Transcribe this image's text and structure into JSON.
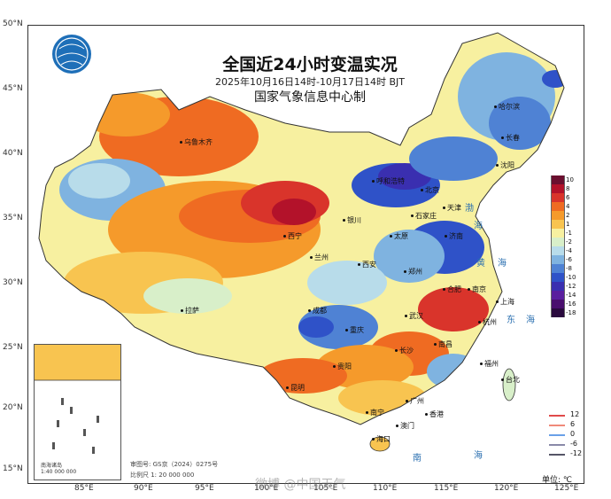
{
  "title": "全国近24小时变温实况",
  "subtitle": "2025年10月16日14时-10月17日14时 BJT",
  "issuer": "国家气象信息中心制",
  "lat_ticks": [
    "50°N",
    "45°N",
    "40°N",
    "35°N",
    "30°N",
    "25°N",
    "20°N",
    "15°N"
  ],
  "lon_ticks": [
    "85°E",
    "90°E",
    "95°E",
    "100°E",
    "105°E",
    "110°E",
    "115°E",
    "120°E",
    "125°E"
  ],
  "legend": {
    "unit": "单位: ℃",
    "bins": [
      {
        "label": "10",
        "color": "#6b0f2f"
      },
      {
        "label": "8",
        "color": "#b3122a"
      },
      {
        "label": "6",
        "color": "#d9342b"
      },
      {
        "label": "4",
        "color": "#ef6b22"
      },
      {
        "label": "2",
        "color": "#f59a2b"
      },
      {
        "label": "1",
        "color": "#f8c450"
      },
      {
        "label": "-1",
        "color": "#f7f0a0"
      },
      {
        "label": "-2",
        "color": "#d8efc9"
      },
      {
        "label": "-4",
        "color": "#b8dcea"
      },
      {
        "label": "-6",
        "color": "#7fb3e0"
      },
      {
        "label": "-8",
        "color": "#4f82d4"
      },
      {
        "label": "-10",
        "color": "#2f52c8"
      },
      {
        "label": "-12",
        "color": "#3a2fb0"
      },
      {
        "label": "-14",
        "color": "#5a1f9e"
      },
      {
        "label": "-16",
        "color": "#4a0f6e"
      },
      {
        "label": "-18",
        "color": "#2a0a3e"
      }
    ],
    "lines": [
      {
        "label": "12",
        "color": "#e04a4a"
      },
      {
        "label": "6",
        "color": "#f08a7a"
      },
      {
        "label": "0",
        "color": "#6aa0e8"
      },
      {
        "label": "-6",
        "color": "#8a8aa8"
      },
      {
        "label": "-12",
        "color": "#555566"
      }
    ]
  },
  "cities": [
    {
      "name": "乌鲁木齐",
      "id": "urumqi"
    },
    {
      "name": "哈尔滨",
      "id": "harbin"
    },
    {
      "name": "长春",
      "id": "changchun"
    },
    {
      "name": "沈阳",
      "id": "shenyang"
    },
    {
      "name": "呼和浩特",
      "id": "hohhot"
    },
    {
      "name": "北京",
      "id": "beijing"
    },
    {
      "name": "天津",
      "id": "tianjin"
    },
    {
      "name": "石家庄",
      "id": "shijiazhuang"
    },
    {
      "name": "太原",
      "id": "taiyuan"
    },
    {
      "name": "济南",
      "id": "jinan"
    },
    {
      "name": "银川",
      "id": "yinchuan"
    },
    {
      "name": "西宁",
      "id": "xining"
    },
    {
      "name": "兰州",
      "id": "lanzhou"
    },
    {
      "name": "郑州",
      "id": "zhengzhou"
    },
    {
      "name": "西安",
      "id": "xian"
    },
    {
      "name": "合肥",
      "id": "hefei"
    },
    {
      "name": "南京",
      "id": "nanjing"
    },
    {
      "name": "上海",
      "id": "shanghai"
    },
    {
      "name": "杭州",
      "id": "hangzhou"
    },
    {
      "name": "武汉",
      "id": "wuhan"
    },
    {
      "name": "成都",
      "id": "chengdu"
    },
    {
      "name": "重庆",
      "id": "chongqing"
    },
    {
      "name": "拉萨",
      "id": "lhasa"
    },
    {
      "name": "长沙",
      "id": "changsha"
    },
    {
      "name": "南昌",
      "id": "nanchang"
    },
    {
      "name": "福州",
      "id": "fuzhou"
    },
    {
      "name": "贵阳",
      "id": "guiyang"
    },
    {
      "name": "昆明",
      "id": "kunming"
    },
    {
      "name": "南宁",
      "id": "nanning"
    },
    {
      "name": "广州",
      "id": "guangzhou"
    },
    {
      "name": "香港",
      "id": "hongkong"
    },
    {
      "name": "澳门",
      "id": "macau"
    },
    {
      "name": "海口",
      "id": "haikou"
    },
    {
      "name": "台北",
      "id": "taipei"
    }
  ],
  "seas": [
    {
      "name": "渤",
      "id": "bohai1"
    },
    {
      "name": "海",
      "id": "bohai2"
    },
    {
      "name": "黄",
      "id": "huang1"
    },
    {
      "name": "海",
      "id": "huang2"
    },
    {
      "name": "东",
      "id": "dong1"
    },
    {
      "name": "海",
      "id": "dong2"
    },
    {
      "name": "南",
      "id": "nan1"
    },
    {
      "name": "海",
      "id": "nan2"
    }
  ],
  "inset": {
    "caption": "南海诸岛",
    "scale": "1:40 000 000"
  },
  "review_no": "审图号: GS京（2024）0275号",
  "scale_text": "比例尺 1: 20 000 000",
  "watermark": "微博 @中国天气"
}
